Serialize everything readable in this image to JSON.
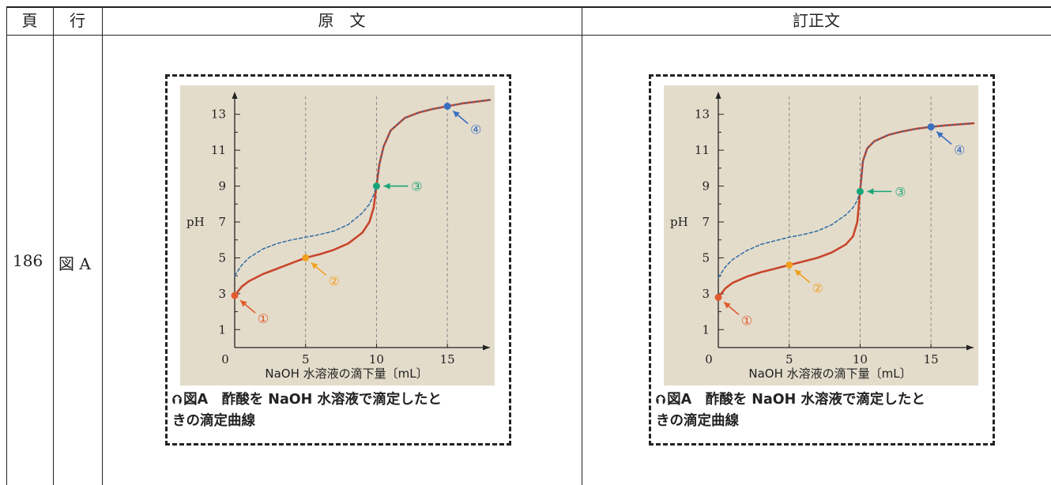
{
  "header": {
    "page": "頁",
    "line": "行",
    "original": "原　文",
    "corrected": "訂正文"
  },
  "row": {
    "page": "186",
    "line": "図 A"
  },
  "figures": [
    {
      "id": "original",
      "caption_line1": "図A　酢酸を NaOH 水溶液で滴定したと",
      "caption_line2": "きの滴定曲線",
      "caption_icon": "up-arrow-circle-icon"
    },
    {
      "id": "corrected",
      "caption_line1": "図A　酢酸を NaOH 水溶液で滴定したと",
      "caption_line2": "きの滴定曲線",
      "caption_icon": "up-arrow-circle-icon"
    }
  ],
  "chart_data": [
    {
      "type": "line",
      "xlabel": "NaOH 水溶液の滴下量〔mL〕",
      "ylabel": "pH",
      "x_ticks": [
        "0",
        "5",
        "10",
        "15"
      ],
      "y_ticks": [
        "1",
        "3",
        "5",
        "7",
        "9",
        "11",
        "13"
      ],
      "xlim": [
        0,
        18
      ],
      "ylim": [
        0,
        14
      ],
      "background": "#e4dccb",
      "series": [
        {
          "style": "solid",
          "color": "#c8462c",
          "x": [
            0,
            0.5,
            1,
            2,
            3,
            4,
            5,
            6,
            7,
            8,
            9,
            9.5,
            9.8,
            10,
            10.2,
            10.5,
            11,
            12,
            13,
            14,
            15,
            16,
            17,
            18
          ],
          "y": [
            2.9,
            3.4,
            3.7,
            4.1,
            4.4,
            4.7,
            5.0,
            5.2,
            5.45,
            5.8,
            6.4,
            7.0,
            7.8,
            9.0,
            10.2,
            11.2,
            12.1,
            12.8,
            13.1,
            13.3,
            13.45,
            13.6,
            13.7,
            13.8
          ]
        },
        {
          "style": "dashed",
          "color": "#2e6ca4",
          "x": [
            0,
            0.5,
            1,
            2,
            3,
            4,
            5,
            6,
            7,
            8,
            9,
            9.5,
            9.8,
            10
          ],
          "y": [
            4.0,
            4.6,
            5.0,
            5.5,
            5.8,
            6.0,
            6.15,
            6.3,
            6.5,
            6.85,
            7.5,
            8.0,
            8.5,
            9.0
          ]
        }
      ],
      "points": [
        {
          "label": "①",
          "x": 0,
          "y": 2.9,
          "color": "#e25a2c"
        },
        {
          "label": "②",
          "x": 5,
          "y": 5.0,
          "color": "#f0a020"
        },
        {
          "label": "③",
          "x": 10,
          "y": 9.0,
          "color": "#1aa579"
        },
        {
          "label": "④",
          "x": 15,
          "y": 13.45,
          "color": "#3a6fc0"
        }
      ]
    },
    {
      "type": "line",
      "xlabel": "NaOH 水溶液の滴下量〔mL〕",
      "ylabel": "pH",
      "x_ticks": [
        "0",
        "5",
        "10",
        "15"
      ],
      "y_ticks": [
        "1",
        "3",
        "5",
        "7",
        "9",
        "11",
        "13"
      ],
      "xlim": [
        0,
        18
      ],
      "ylim": [
        0,
        14
      ],
      "background": "#e4dccb",
      "series": [
        {
          "style": "solid",
          "color": "#c8462c",
          "x": [
            0,
            0.5,
            1,
            2,
            3,
            4,
            5,
            6,
            7,
            8,
            9,
            9.5,
            9.8,
            10,
            10.2,
            10.5,
            11,
            12,
            13,
            14,
            15,
            16,
            17,
            18
          ],
          "y": [
            2.8,
            3.3,
            3.6,
            3.95,
            4.2,
            4.4,
            4.6,
            4.8,
            5.0,
            5.3,
            5.75,
            6.2,
            7.0,
            8.7,
            10.4,
            11.1,
            11.5,
            11.85,
            12.05,
            12.2,
            12.3,
            12.38,
            12.44,
            12.5
          ]
        },
        {
          "style": "dashed",
          "color": "#2e6ca4",
          "x": [
            0,
            0.5,
            1,
            2,
            3,
            4,
            5,
            6,
            7,
            8,
            9,
            9.5,
            9.8,
            10
          ],
          "y": [
            3.9,
            4.5,
            4.9,
            5.4,
            5.75,
            5.95,
            6.15,
            6.3,
            6.5,
            6.85,
            7.4,
            7.8,
            8.2,
            8.7
          ]
        }
      ],
      "points": [
        {
          "label": "①",
          "x": 0,
          "y": 2.8,
          "color": "#e25a2c"
        },
        {
          "label": "②",
          "x": 5,
          "y": 4.6,
          "color": "#f0a020"
        },
        {
          "label": "③",
          "x": 10,
          "y": 8.7,
          "color": "#1aa579"
        },
        {
          "label": "④",
          "x": 15,
          "y": 12.3,
          "color": "#3a6fc0"
        }
      ]
    }
  ]
}
